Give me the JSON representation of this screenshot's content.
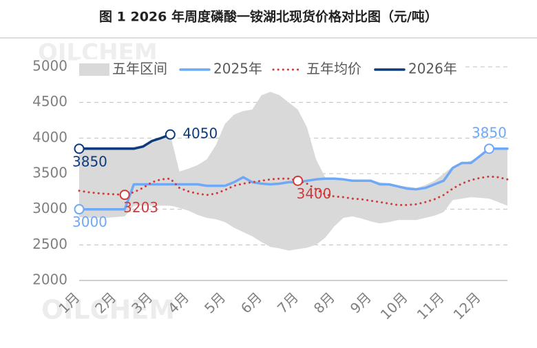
{
  "chart_data": {
    "type": "line",
    "title": "图 1  2026 年周度磷酸一铵湖北现货价格对比图（元/吨）",
    "watermark": "OILCHEM",
    "categories": [
      "1月",
      null,
      null,
      null,
      "2月",
      null,
      null,
      null,
      "3月",
      null,
      null,
      null,
      "4月",
      null,
      null,
      null,
      "5月",
      null,
      null,
      null,
      "6月",
      null,
      null,
      null,
      "7月",
      null,
      null,
      null,
      "8月",
      null,
      null,
      null,
      "9月",
      null,
      null,
      null,
      "10月",
      null,
      null,
      null,
      "11月",
      null,
      null,
      null,
      "12月",
      null,
      null,
      null
    ],
    "ylim": [
      2000,
      5000
    ],
    "yticks": [
      2000,
      2500,
      3000,
      3500,
      4000,
      4500,
      5000
    ],
    "grid": true,
    "legend": "top",
    "series": [
      {
        "name": "五年区间",
        "color": "#d9d9d9",
        "low": [
          2890,
          2880,
          2880,
          2880,
          2890,
          2900,
          3050,
          3050,
          3050,
          3050,
          3050,
          3020,
          2980,
          2920,
          2880,
          2860,
          2820,
          2740,
          2680,
          2620,
          2540,
          2470,
          2450,
          2420,
          2440,
          2460,
          2500,
          2600,
          2760,
          2880,
          2900,
          2870,
          2830,
          2800,
          2820,
          2850,
          2850,
          2850,
          2880,
          2910,
          2960,
          3130,
          3150,
          3170,
          3160,
          3150,
          3100,
          3050
        ],
        "high": [
          3880,
          3880,
          3880,
          3880,
          3880,
          3880,
          3880,
          3900,
          3960,
          4000,
          4050,
          3530,
          3570,
          3620,
          3700,
          3900,
          4200,
          4330,
          4380,
          4400,
          4600,
          4650,
          4600,
          4500,
          4400,
          4150,
          3700,
          3450,
          3430,
          3420,
          3420,
          3410,
          3410,
          3380,
          3360,
          3330,
          3320,
          3300,
          3340,
          3400,
          3500,
          3600,
          3650,
          3680,
          3750,
          3850,
          3850,
          3850
        ]
      },
      {
        "name": "2025年",
        "color": "#6fa8f5",
        "values": [
          3000,
          3000,
          3000,
          3000,
          3000,
          3000,
          3350,
          3350,
          3350,
          3350,
          3350,
          3350,
          3350,
          3350,
          3330,
          3330,
          3330,
          3380,
          3450,
          3380,
          3360,
          3350,
          3360,
          3380,
          3380,
          3400,
          3420,
          3430,
          3430,
          3420,
          3400,
          3400,
          3400,
          3350,
          3350,
          3320,
          3290,
          3280,
          3300,
          3350,
          3400,
          3580,
          3650,
          3650,
          3750,
          3850,
          3850,
          3850
        ],
        "value_labels": [
          "3000",
          null,
          null,
          null,
          null,
          null,
          null,
          null,
          null,
          null,
          null,
          null,
          null,
          null,
          null,
          null,
          null,
          null,
          null,
          null,
          null,
          null,
          null,
          null,
          null,
          null,
          null,
          null,
          null,
          null,
          null,
          null,
          null,
          null,
          null,
          null,
          null,
          null,
          null,
          null,
          null,
          null,
          null,
          null,
          null,
          "3850",
          null,
          null
        ]
      },
      {
        "name": "五年均价",
        "color": "#d03a3a",
        "dotted": true,
        "values": [
          3260,
          3240,
          3225,
          3215,
          3210,
          3203,
          3240,
          3300,
          3380,
          3420,
          3430,
          3300,
          3250,
          3220,
          3200,
          3220,
          3270,
          3330,
          3360,
          3380,
          3400,
          3420,
          3430,
          3430,
          3400,
          3360,
          3280,
          3210,
          3180,
          3170,
          3150,
          3140,
          3120,
          3100,
          3080,
          3060,
          3060,
          3070,
          3100,
          3140,
          3200,
          3290,
          3360,
          3410,
          3440,
          3460,
          3450,
          3420
        ],
        "value_labels": [
          null,
          null,
          null,
          null,
          null,
          "3203",
          null,
          null,
          null,
          null,
          null,
          null,
          null,
          null,
          null,
          null,
          null,
          null,
          null,
          null,
          null,
          null,
          null,
          null,
          "3400",
          null,
          null,
          null,
          null,
          null,
          null,
          null,
          null,
          null,
          null,
          null,
          null,
          null,
          null,
          null,
          null,
          null,
          null,
          null,
          null,
          null,
          null,
          null
        ]
      },
      {
        "name": "2026年",
        "color": "#0d3a7a",
        "values": [
          3850,
          3850,
          3850,
          3850,
          3850,
          3850,
          3850,
          3880,
          3960,
          4000,
          4050,
          null,
          null,
          null,
          null,
          null,
          null,
          null,
          null,
          null,
          null,
          null,
          null,
          null,
          null,
          null,
          null,
          null,
          null,
          null,
          null,
          null,
          null,
          null,
          null,
          null,
          null,
          null,
          null,
          null,
          null,
          null,
          null,
          null,
          null,
          null,
          null,
          null
        ],
        "value_labels": [
          "3850",
          null,
          null,
          null,
          null,
          null,
          null,
          null,
          null,
          null,
          "4050",
          null,
          null,
          null,
          null,
          null,
          null,
          null,
          null,
          null,
          null,
          null,
          null,
          null,
          null,
          null,
          null,
          null,
          null,
          null,
          null,
          null,
          null,
          null,
          null,
          null,
          null,
          null,
          null,
          null,
          null,
          null,
          null,
          null,
          null,
          null,
          null,
          null
        ]
      }
    ]
  }
}
